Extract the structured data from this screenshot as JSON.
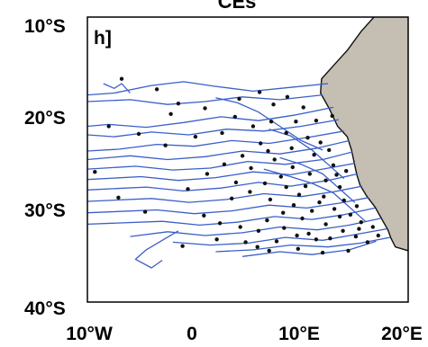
{
  "title": "CEs",
  "panel_label": "h]",
  "y_ticks": [
    "10°S",
    "20°S",
    "30°S",
    "40°S"
  ],
  "x_ticks": [
    "10°W",
    "0",
    "10°E",
    "20°E"
  ],
  "colors": {
    "land": "#c4beb3",
    "coastline": "#111111",
    "tracks": "#3a5fc8",
    "points": "#111111",
    "frame": "#000000",
    "background": "#ffffff"
  },
  "map_extent": {
    "lon": [
      -10,
      20
    ],
    "lat": [
      -40,
      -10
    ]
  },
  "coastline_lonlat": [
    [
      16.8,
      -10
    ],
    [
      15.6,
      -11.5
    ],
    [
      14.3,
      -13.5
    ],
    [
      13.1,
      -15.0
    ],
    [
      11.9,
      -16.5
    ],
    [
      11.8,
      -18.0
    ],
    [
      12.6,
      -19.6
    ],
    [
      13.4,
      -21.5
    ],
    [
      14.3,
      -22.6
    ],
    [
      14.7,
      -24.0
    ],
    [
      15.0,
      -25.6
    ],
    [
      15.2,
      -26.6
    ],
    [
      15.5,
      -27.7
    ],
    [
      16.1,
      -28.8
    ],
    [
      16.9,
      -30.0
    ],
    [
      17.5,
      -31.2
    ],
    [
      18.1,
      -32.4
    ],
    [
      18.4,
      -33.3
    ],
    [
      18.8,
      -34.2
    ],
    [
      20,
      -34.6
    ]
  ],
  "tracks_lonlat": [
    [
      [
        12.5,
        -17.0
      ],
      [
        9.0,
        -17.4
      ],
      [
        5.5,
        -17.8
      ],
      [
        2.0,
        -17.3
      ],
      [
        -1.0,
        -16.8
      ],
      [
        -4.0,
        -17.2
      ],
      [
        -7.5,
        -18.0
      ],
      [
        -10,
        -18.2
      ]
    ],
    [
      [
        12.0,
        -18.2
      ],
      [
        8.0,
        -18.7
      ],
      [
        4.5,
        -18.4
      ],
      [
        1.0,
        -18.9
      ],
      [
        -2.5,
        -19.2
      ],
      [
        -6.0,
        -18.7
      ],
      [
        -10,
        -18.9
      ]
    ],
    [
      [
        13.0,
        -19.5
      ],
      [
        9.5,
        -20.3
      ],
      [
        6.0,
        -20.9
      ],
      [
        2.5,
        -20.5
      ],
      [
        -1.0,
        -21.1
      ],
      [
        -4.5,
        -21.6
      ],
      [
        -8.0,
        -21.3
      ],
      [
        -10,
        -21.5
      ]
    ],
    [
      [
        13.5,
        -20.8
      ],
      [
        10.0,
        -21.5
      ],
      [
        6.5,
        -22.0
      ],
      [
        3.0,
        -21.8
      ],
      [
        -0.5,
        -22.4
      ],
      [
        -4.0,
        -22.1
      ],
      [
        -7.5,
        -22.6
      ],
      [
        -10,
        -22.4
      ]
    ],
    [
      [
        14.0,
        -22.0
      ],
      [
        11.0,
        -22.6
      ],
      [
        7.0,
        -23.3
      ],
      [
        3.5,
        -23.0
      ],
      [
        0.0,
        -23.6
      ],
      [
        -3.5,
        -23.4
      ],
      [
        -7.0,
        -23.9
      ],
      [
        -10,
        -24.1
      ]
    ],
    [
      [
        14.5,
        -23.0
      ],
      [
        11.5,
        -23.8
      ],
      [
        8.0,
        -24.4
      ],
      [
        4.5,
        -24.1
      ],
      [
        1.0,
        -24.7
      ],
      [
        -2.5,
        -25.0
      ],
      [
        -6.0,
        -24.6
      ],
      [
        -10,
        -25.0
      ]
    ],
    [
      [
        14.8,
        -24.2
      ],
      [
        12.0,
        -25.0
      ],
      [
        8.5,
        -25.5
      ],
      [
        5.0,
        -25.2
      ],
      [
        1.5,
        -25.9
      ],
      [
        -2.0,
        -26.1
      ],
      [
        -5.5,
        -25.7
      ],
      [
        -10,
        -26.0
      ]
    ],
    [
      [
        15.0,
        -25.4
      ],
      [
        12.0,
        -26.0
      ],
      [
        9.0,
        -26.6
      ],
      [
        5.5,
        -26.3
      ],
      [
        2.0,
        -26.9
      ],
      [
        -1.5,
        -27.2
      ],
      [
        -5.0,
        -26.8
      ],
      [
        -10,
        -27.1
      ]
    ],
    [
      [
        15.3,
        -26.5
      ],
      [
        12.5,
        -27.2
      ],
      [
        9.0,
        -27.8
      ],
      [
        6.0,
        -27.4
      ],
      [
        2.5,
        -28.0
      ],
      [
        -1.0,
        -28.3
      ],
      [
        -4.5,
        -27.9
      ],
      [
        -10,
        -28.2
      ]
    ],
    [
      [
        15.7,
        -27.8
      ],
      [
        13.0,
        -28.4
      ],
      [
        10.0,
        -28.9
      ],
      [
        6.5,
        -28.6
      ],
      [
        3.0,
        -29.2
      ],
      [
        -0.5,
        -29.5
      ],
      [
        -4.0,
        -29.1
      ],
      [
        -10,
        -29.4
      ]
    ],
    [
      [
        16.3,
        -29.0
      ],
      [
        13.5,
        -29.6
      ],
      [
        10.5,
        -30.1
      ],
      [
        7.0,
        -29.8
      ],
      [
        3.5,
        -30.4
      ],
      [
        0.0,
        -30.7
      ],
      [
        -3.5,
        -30.3
      ],
      [
        -10,
        -30.6
      ]
    ],
    [
      [
        16.9,
        -30.1
      ],
      [
        14.0,
        -30.8
      ],
      [
        11.0,
        -31.3
      ],
      [
        7.5,
        -31.0
      ],
      [
        4.0,
        -31.6
      ],
      [
        0.5,
        -31.9
      ],
      [
        -3.0,
        -31.5
      ],
      [
        -10,
        -31.8
      ]
    ],
    [
      [
        17.4,
        -31.2
      ],
      [
        14.5,
        -31.9
      ],
      [
        11.5,
        -32.4
      ],
      [
        8.0,
        -32.1
      ],
      [
        4.5,
        -32.7
      ],
      [
        1.0,
        -33.0
      ],
      [
        -2.5,
        -32.6
      ],
      [
        -6.0,
        -33.1
      ]
    ],
    [
      [
        18.0,
        -32.3
      ],
      [
        15.0,
        -32.9
      ],
      [
        12.0,
        -33.5
      ],
      [
        8.5,
        -33.2
      ],
      [
        5.0,
        -33.8
      ],
      [
        1.5,
        -34.0
      ],
      [
        -2.0,
        -33.7
      ]
    ],
    [
      [
        18.3,
        -33.2
      ],
      [
        15.5,
        -33.8
      ],
      [
        12.5,
        -34.2
      ],
      [
        9.0,
        -34.0
      ],
      [
        5.5,
        -34.5
      ],
      [
        2.0,
        -34.7
      ]
    ],
    [
      [
        17.0,
        -33.6
      ],
      [
        14.5,
        -34.5
      ],
      [
        11.0,
        -35.0
      ],
      [
        8.0,
        -34.7
      ],
      [
        4.5,
        -35.2
      ]
    ],
    [
      [
        12.0,
        -24.0
      ],
      [
        10.0,
        -23.0
      ],
      [
        8.0,
        -21.5
      ],
      [
        6.0,
        -20.0
      ],
      [
        4.0,
        -19.0
      ],
      [
        2.0,
        -18.5
      ]
    ],
    [
      [
        14.0,
        -27.0
      ],
      [
        12.5,
        -25.5
      ],
      [
        11.0,
        -24.0
      ],
      [
        9.0,
        -22.5
      ],
      [
        7.0,
        -21.8
      ]
    ],
    [
      [
        15.0,
        -29.5
      ],
      [
        13.5,
        -28.0
      ],
      [
        12.0,
        -26.5
      ],
      [
        10.0,
        -25.5
      ],
      [
        8.0,
        -24.8
      ]
    ],
    [
      [
        16.0,
        -31.5
      ],
      [
        14.5,
        -30.0
      ],
      [
        13.0,
        -28.5
      ],
      [
        11.0,
        -27.5
      ],
      [
        9.0,
        -26.8
      ],
      [
        6.5,
        -26.0
      ]
    ],
    [
      [
        -1.5,
        -32.5
      ],
      [
        -3.0,
        -33.5
      ],
      [
        -4.5,
        -34.5
      ],
      [
        -5.5,
        -35.5
      ],
      [
        -4.0,
        -36.4
      ],
      [
        -3.0,
        -35.6
      ]
    ],
    [
      [
        -6.0,
        -18.0
      ],
      [
        -6.8,
        -17.0
      ],
      [
        -7.5,
        -17.5
      ],
      [
        -8.5,
        -17.0
      ]
    ]
  ],
  "points_lonlat": [
    [
      -6.8,
      -16.5
    ],
    [
      -3.5,
      -17.6
    ],
    [
      -1.5,
      -19.1
    ],
    [
      1.0,
      -19.6
    ],
    [
      3.8,
      -20.5
    ],
    [
      5.5,
      -21.5
    ],
    [
      7.2,
      -21.0
    ],
    [
      8.6,
      -22.2
    ],
    [
      9.5,
      -21.0
    ],
    [
      10.6,
      -22.7
    ],
    [
      11.8,
      -23.2
    ],
    [
      12.6,
      -24.0
    ],
    [
      6.2,
      -23.3
    ],
    [
      4.5,
      -24.6
    ],
    [
      2.8,
      -25.5
    ],
    [
      1.2,
      -26.5
    ],
    [
      7.5,
      -25.0
    ],
    [
      9.2,
      -25.8
    ],
    [
      10.8,
      -26.5
    ],
    [
      12.3,
      -27.2
    ],
    [
      13.6,
      -27.9
    ],
    [
      14.2,
      -26.2
    ],
    [
      13.0,
      -25.6
    ],
    [
      11.2,
      -24.5
    ],
    [
      8.1,
      -26.8
    ],
    [
      6.6,
      -27.5
    ],
    [
      5.2,
      -28.4
    ],
    [
      3.5,
      -29.1
    ],
    [
      9.8,
      -28.7
    ],
    [
      11.7,
      -29.5
    ],
    [
      13.1,
      -30.2
    ],
    [
      14.6,
      -30.8
    ],
    [
      15.6,
      -31.6
    ],
    [
      16.7,
      -32.1
    ],
    [
      12.3,
      -31.8
    ],
    [
      10.1,
      -31.2
    ],
    [
      8.3,
      -30.6
    ],
    [
      6.8,
      -31.4
    ],
    [
      4.3,
      -32.1
    ],
    [
      2.4,
      -31.7
    ],
    [
      13.9,
      -32.5
    ],
    [
      15.1,
      -33.1
    ],
    [
      16.2,
      -33.7
    ],
    [
      11.4,
      -33.4
    ],
    [
      9.6,
      -33.0
    ],
    [
      7.7,
      -33.6
    ],
    [
      5.9,
      -34.2
    ],
    [
      14.4,
      -34.6
    ],
    [
      -8.0,
      -21.5
    ],
    [
      -5.2,
      -22.3
    ],
    [
      -2.7,
      -23.5
    ],
    [
      -9.3,
      -26.3
    ],
    [
      -7.1,
      -29.0
    ],
    [
      -4.6,
      -30.5
    ],
    [
      -0.6,
      -28.1
    ],
    [
      0.9,
      -30.9
    ],
    [
      2.1,
      -33.4
    ],
    [
      -1.1,
      -34.1
    ],
    [
      10.2,
      -19.5
    ],
    [
      8.7,
      -18.4
    ],
    [
      6.1,
      -17.9
    ],
    [
      4.2,
      -18.6
    ],
    [
      7.4,
      -19.2
    ],
    [
      12.9,
      -20.4
    ],
    [
      11.4,
      -20.9
    ],
    [
      9.1,
      -23.8
    ],
    [
      5.3,
      -25.9
    ],
    [
      3.9,
      -27.4
    ],
    [
      10.4,
      -27.8
    ],
    [
      12.1,
      -28.9
    ],
    [
      14.0,
      -29.3
    ],
    [
      15.2,
      -29.9
    ],
    [
      7.1,
      -29.2
    ],
    [
      9.3,
      -29.8
    ],
    [
      11.0,
      -30.4
    ],
    [
      13.6,
      -31.0
    ],
    [
      6.0,
      -32.5
    ],
    [
      8.4,
      -32.2
    ],
    [
      10.7,
      -32.8
    ],
    [
      12.7,
      -33.3
    ],
    [
      15.4,
      -32.3
    ],
    [
      17.2,
      -33.0
    ],
    [
      4.8,
      -33.7
    ],
    [
      7.0,
      -34.6
    ],
    [
      9.7,
      -34.4
    ],
    [
      12.0,
      -34.8
    ],
    [
      2.6,
      -22.2
    ],
    [
      0.1,
      -22.6
    ],
    [
      -2.2,
      -20.2
    ],
    [
      6.9,
      -24.1
    ],
    [
      8.6,
      -27.9
    ],
    [
      13.3,
      -26.6
    ]
  ]
}
